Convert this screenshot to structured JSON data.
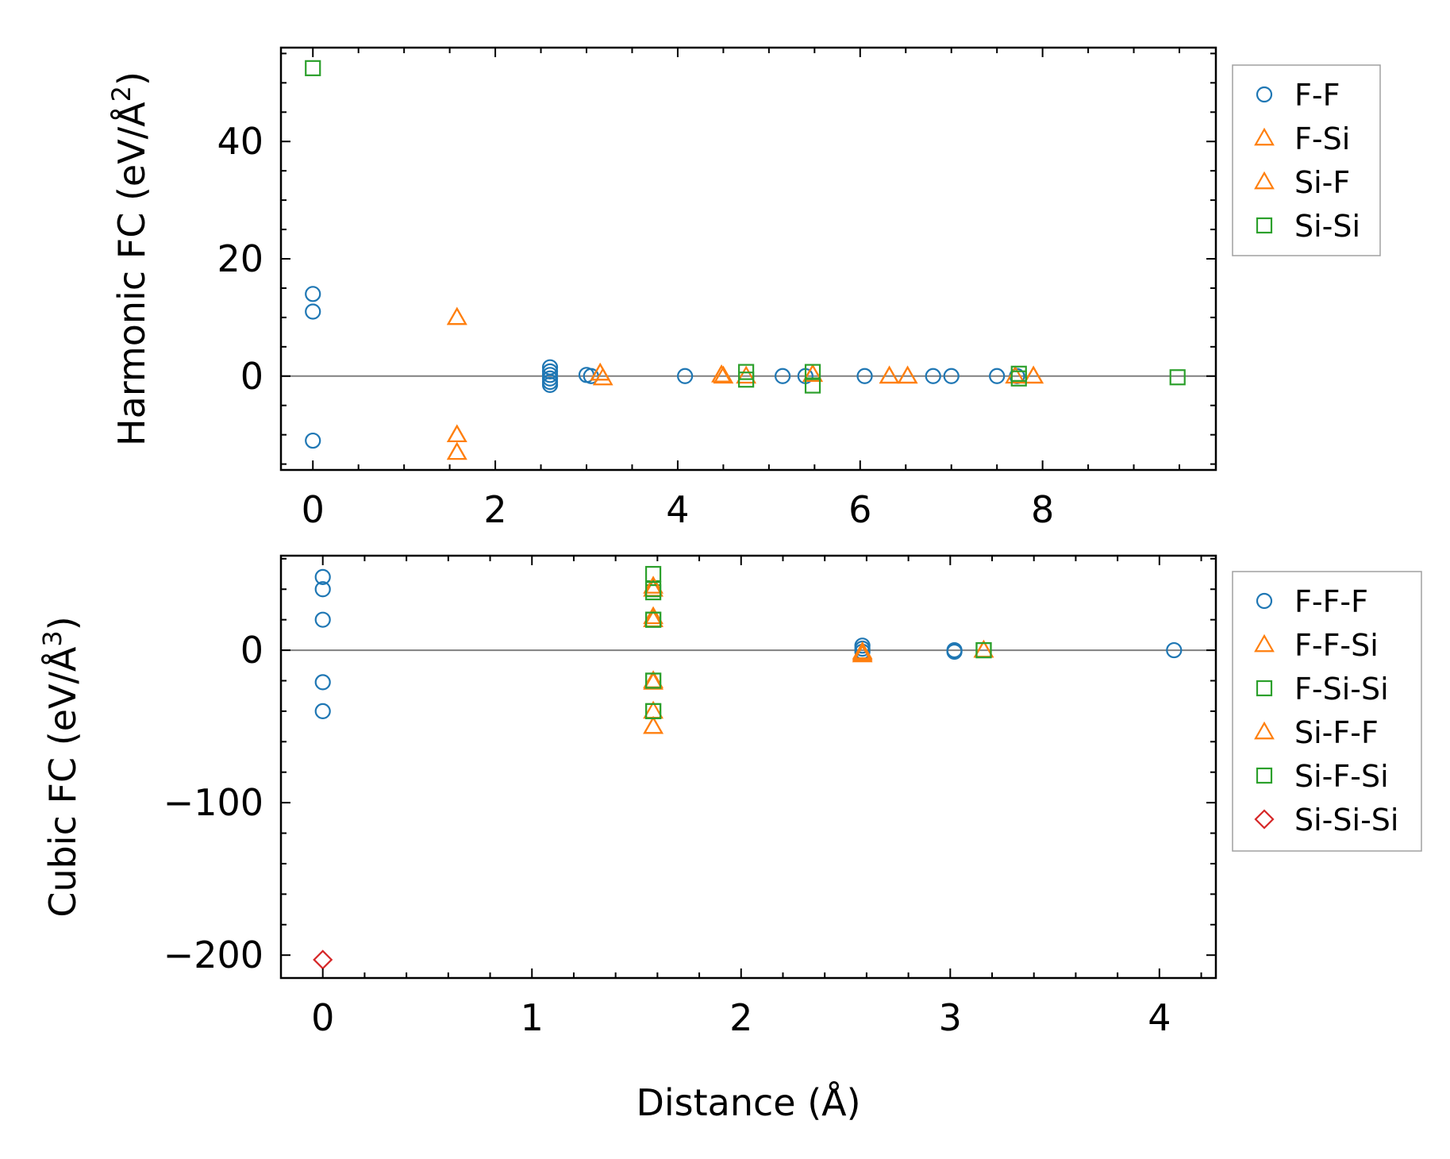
{
  "chart_data": [
    {
      "type": "scatter",
      "ylabel_main": "Harmonic FC (eV/Å",
      "ylabel_sup": "2",
      "ylabel_close": ")",
      "xlabel": "",
      "xlim": [
        -0.35,
        9.9
      ],
      "ylim": [
        -16,
        56
      ],
      "xticks": [
        0,
        2,
        4,
        6,
        8
      ],
      "xtick_labels": [
        "0",
        "2",
        "4",
        "6",
        "8"
      ],
      "xminor": 0.5,
      "yticks": [
        0,
        20,
        40
      ],
      "ytick_labels": [
        "0",
        "20",
        "40"
      ],
      "yminor": 5,
      "legend_position": "outside-right-top",
      "series": [
        {
          "name": "F-F",
          "marker": "circle",
          "color": "#1f77b4",
          "points": [
            [
              0,
              14
            ],
            [
              0,
              11
            ],
            [
              0,
              -11
            ],
            [
              2.6,
              1.5
            ],
            [
              2.6,
              0.8
            ],
            [
              2.6,
              0.2
            ],
            [
              2.6,
              -0.4
            ],
            [
              2.6,
              -1.0
            ],
            [
              2.6,
              -1.5
            ],
            [
              3.0,
              0.2
            ],
            [
              3.05,
              0
            ],
            [
              4.08,
              0
            ],
            [
              5.15,
              0
            ],
            [
              5.4,
              0
            ],
            [
              6.05,
              0
            ],
            [
              6.8,
              0
            ],
            [
              7.0,
              0
            ],
            [
              7.5,
              0
            ],
            [
              7.72,
              0
            ]
          ]
        },
        {
          "name": "F-Si",
          "marker": "triangle",
          "color": "#ff7f0e",
          "points": [
            [
              1.58,
              10
            ],
            [
              1.58,
              -10
            ],
            [
              1.58,
              -13
            ],
            [
              3.15,
              0.5
            ],
            [
              3.18,
              -0.3
            ],
            [
              4.48,
              0.2
            ],
            [
              4.5,
              0
            ],
            [
              4.75,
              0
            ],
            [
              5.48,
              0.3
            ],
            [
              6.32,
              0
            ],
            [
              6.52,
              0
            ],
            [
              7.7,
              0
            ],
            [
              7.9,
              0
            ]
          ]
        },
        {
          "name": "Si-F",
          "marker": "triangle",
          "color": "#ff7f0e",
          "points": [
            [
              1.58,
              10
            ],
            [
              1.58,
              -10
            ],
            [
              1.58,
              -13
            ],
            [
              3.15,
              0.5
            ],
            [
              4.48,
              0.2
            ],
            [
              5.48,
              0.3
            ],
            [
              6.32,
              0
            ],
            [
              6.52,
              0
            ],
            [
              7.9,
              0
            ]
          ]
        },
        {
          "name": "Si-Si",
          "marker": "square",
          "color": "#2ca02c",
          "points": [
            [
              0,
              52.5
            ],
            [
              4.75,
              0.7
            ],
            [
              4.75,
              -0.6
            ],
            [
              5.48,
              0.7
            ],
            [
              5.48,
              -1.6
            ],
            [
              7.74,
              0.4
            ],
            [
              7.74,
              -0.4
            ],
            [
              9.48,
              -0.2
            ]
          ]
        }
      ]
    },
    {
      "type": "scatter",
      "ylabel_main": "Cubic FC (eV/Å",
      "ylabel_sup": "3",
      "ylabel_close": ")",
      "xlabel": "Distance (Å)",
      "xlim": [
        -0.2,
        4.27
      ],
      "ylim": [
        -215,
        62
      ],
      "xticks": [
        0,
        1,
        2,
        3,
        4
      ],
      "xtick_labels": [
        "0",
        "1",
        "2",
        "3",
        "4"
      ],
      "xminor": 0.2,
      "yticks": [
        -200,
        -100,
        0
      ],
      "ytick_labels": [
        "−200",
        "−100",
        "0"
      ],
      "yminor": 20,
      "legend_position": "outside-right-top",
      "series": [
        {
          "name": "F-F-F",
          "marker": "circle",
          "color": "#1f77b4",
          "points": [
            [
              0,
              48
            ],
            [
              0,
              40
            ],
            [
              0,
              20
            ],
            [
              0,
              -21
            ],
            [
              0,
              -40
            ],
            [
              2.58,
              3
            ],
            [
              2.58,
              1
            ],
            [
              2.58,
              -1
            ],
            [
              3.02,
              0
            ],
            [
              3.02,
              -1
            ],
            [
              4.07,
              0
            ]
          ]
        },
        {
          "name": "F-F-Si",
          "marker": "triangle",
          "color": "#ff7f0e",
          "points": [
            [
              1.58,
              40
            ],
            [
              1.58,
              20
            ],
            [
              1.58,
              -20
            ],
            [
              1.58,
              -40
            ],
            [
              1.58,
              -50
            ],
            [
              2.58,
              -1
            ],
            [
              2.58,
              -3
            ],
            [
              3.16,
              0
            ]
          ]
        },
        {
          "name": "F-Si-Si",
          "marker": "square",
          "color": "#2ca02c",
          "points": [
            [
              1.58,
              50
            ],
            [
              1.58,
              38
            ],
            [
              1.58,
              20
            ],
            [
              1.58,
              -20
            ],
            [
              1.58,
              -40
            ],
            [
              3.16,
              0
            ]
          ]
        },
        {
          "name": "Si-F-F",
          "marker": "triangle",
          "color": "#ff7f0e",
          "points": [
            [
              1.58,
              42
            ],
            [
              1.58,
              22
            ],
            [
              1.58,
              -21
            ],
            [
              1.58,
              -50
            ],
            [
              2.58,
              -2
            ],
            [
              3.16,
              0
            ]
          ]
        },
        {
          "name": "Si-F-Si",
          "marker": "square",
          "color": "#2ca02c",
          "points": [
            [
              1.58,
              40
            ],
            [
              1.58,
              20
            ],
            [
              1.58,
              -20
            ],
            [
              1.58,
              -40
            ],
            [
              3.16,
              0
            ]
          ]
        },
        {
          "name": "Si-Si-Si",
          "marker": "diamond",
          "color": "#d62728",
          "points": [
            [
              0,
              -203
            ]
          ]
        }
      ]
    }
  ]
}
